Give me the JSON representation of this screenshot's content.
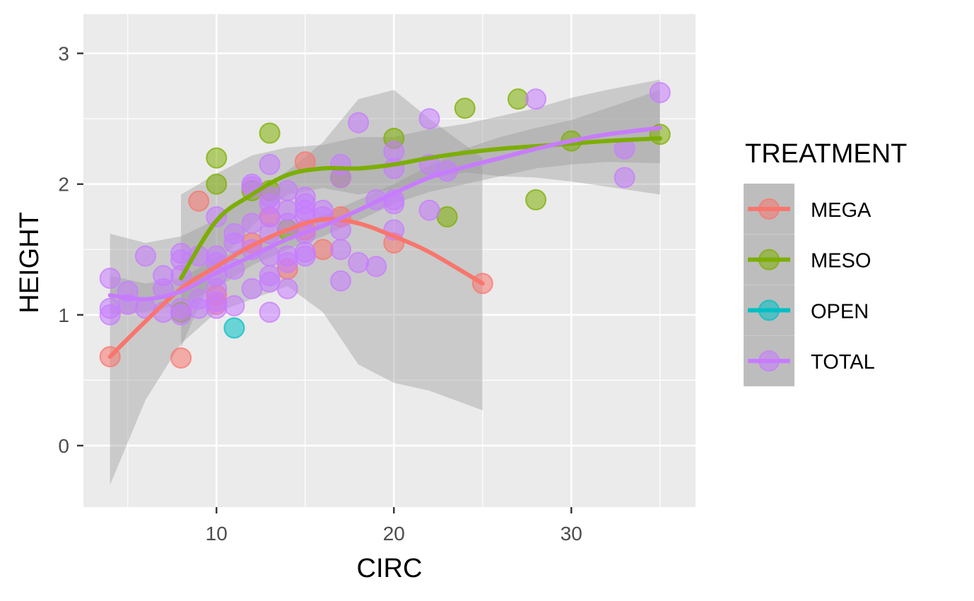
{
  "chart_data": {
    "type": "scatter",
    "xlabel": "CIRC",
    "ylabel": "HEIGHT",
    "xlim": [
      2.5,
      37
    ],
    "ylim": [
      -0.47,
      3.3
    ],
    "x_ticks": [
      10,
      20,
      30
    ],
    "y_ticks": [
      0,
      1,
      2,
      3
    ],
    "grid": true,
    "legend": {
      "title": "TREATMENT",
      "placement": "right"
    },
    "series": [
      {
        "name": "MEGA",
        "color": "#F8766D",
        "points": [
          [
            4,
            0.68
          ],
          [
            8,
            0.67
          ],
          [
            9,
            1.87
          ],
          [
            10,
            1.08
          ],
          [
            10,
            1.15
          ],
          [
            12,
            1.55
          ],
          [
            13,
            1.75
          ],
          [
            14,
            1.35
          ],
          [
            15,
            2.17
          ],
          [
            15,
            1.65
          ],
          [
            16,
            1.5
          ],
          [
            17,
            1.75
          ],
          [
            20,
            1.55
          ],
          [
            25,
            1.24
          ]
        ],
        "smooth": [
          [
            4,
            0.68
          ],
          [
            6,
            0.95
          ],
          [
            8,
            1.2
          ],
          [
            10,
            1.37
          ],
          [
            12,
            1.53
          ],
          [
            14,
            1.65
          ],
          [
            16,
            1.73
          ],
          [
            18,
            1.7
          ],
          [
            20,
            1.6
          ],
          [
            22,
            1.48
          ],
          [
            25,
            1.24
          ]
        ],
        "band": [
          [
            4,
            -0.3,
            1.62
          ],
          [
            6,
            0.35,
            1.55
          ],
          [
            8,
            0.78,
            1.6
          ],
          [
            10,
            1.02,
            1.73
          ],
          [
            12,
            1.12,
            1.92
          ],
          [
            14,
            1.22,
            2.1
          ],
          [
            16,
            1.02,
            2.32
          ],
          [
            18,
            0.62,
            2.65
          ],
          [
            20,
            0.48,
            2.72
          ],
          [
            22,
            0.42,
            2.5
          ],
          [
            25,
            0.27,
            2.2
          ]
        ]
      },
      {
        "name": "MESO",
        "color": "#7CAE00",
        "points": [
          [
            8,
            1.02
          ],
          [
            10,
            2.2
          ],
          [
            10,
            2.0
          ],
          [
            12,
            1.95
          ],
          [
            13,
            2.39
          ],
          [
            13,
            1.95
          ],
          [
            14,
            1.65
          ],
          [
            17,
            2.05
          ],
          [
            20,
            2.35
          ],
          [
            23,
            1.75
          ],
          [
            24,
            2.58
          ],
          [
            27,
            2.65
          ],
          [
            28,
            1.88
          ],
          [
            30,
            2.33
          ],
          [
            35,
            2.38
          ]
        ],
        "smooth": [
          [
            8,
            1.28
          ],
          [
            10,
            1.72
          ],
          [
            12,
            1.92
          ],
          [
            14,
            2.07
          ],
          [
            16,
            2.12
          ],
          [
            18,
            2.12
          ],
          [
            20,
            2.15
          ],
          [
            22,
            2.2
          ],
          [
            24,
            2.24
          ],
          [
            26,
            2.27
          ],
          [
            28,
            2.29
          ],
          [
            30,
            2.31
          ],
          [
            32,
            2.33
          ],
          [
            35,
            2.35
          ]
        ],
        "band": [
          [
            8,
            0.75,
            1.92
          ],
          [
            10,
            1.38,
            2.08
          ],
          [
            12,
            1.68,
            2.22
          ],
          [
            14,
            1.92,
            2.28
          ],
          [
            16,
            1.97,
            2.3
          ],
          [
            18,
            1.92,
            2.36
          ],
          [
            20,
            1.96,
            2.36
          ],
          [
            22,
            2.04,
            2.42
          ],
          [
            24,
            2.09,
            2.46
          ],
          [
            26,
            2.06,
            2.52
          ],
          [
            28,
            2.05,
            2.58
          ],
          [
            30,
            2.02,
            2.66
          ],
          [
            32,
            1.98,
            2.72
          ],
          [
            35,
            1.92,
            2.8
          ]
        ]
      },
      {
        "name": "OPEN",
        "color": "#00BFC4",
        "points": [
          [
            11,
            0.9
          ]
        ],
        "smooth": [],
        "band": []
      },
      {
        "name": "TOTAL",
        "color": "#C77CFF",
        "points": [
          [
            4,
            1.28
          ],
          [
            4,
            1.05
          ],
          [
            4,
            1.0
          ],
          [
            5,
            1.18
          ],
          [
            5,
            1.08
          ],
          [
            6,
            1.45
          ],
          [
            6,
            1.05
          ],
          [
            7,
            1.3
          ],
          [
            7,
            1.2
          ],
          [
            7,
            1.02
          ],
          [
            8,
            1.47
          ],
          [
            8,
            1.42
          ],
          [
            8,
            1.3
          ],
          [
            8,
            1.05
          ],
          [
            8,
            1.0
          ],
          [
            9,
            1.45
          ],
          [
            9,
            1.12
          ],
          [
            9,
            1.05
          ],
          [
            10,
            1.75
          ],
          [
            10,
            1.45
          ],
          [
            10,
            1.4
          ],
          [
            10,
            1.3
          ],
          [
            10,
            1.2
          ],
          [
            10,
            1.1
          ],
          [
            10,
            1.05
          ],
          [
            11,
            1.62
          ],
          [
            11,
            1.55
          ],
          [
            11,
            1.35
          ],
          [
            11,
            1.07
          ],
          [
            12,
            2.0
          ],
          [
            12,
            1.98
          ],
          [
            12,
            1.7
          ],
          [
            12,
            1.5
          ],
          [
            12,
            1.2
          ],
          [
            13,
            2.15
          ],
          [
            13,
            1.9
          ],
          [
            13,
            1.85
          ],
          [
            13,
            1.75
          ],
          [
            13,
            1.62
          ],
          [
            13,
            1.45
          ],
          [
            13,
            1.3
          ],
          [
            13,
            1.25
          ],
          [
            13,
            1.02
          ],
          [
            14,
            1.95
          ],
          [
            14,
            1.8
          ],
          [
            14,
            1.7
          ],
          [
            14,
            1.45
          ],
          [
            14,
            1.4
          ],
          [
            14,
            1.2
          ],
          [
            15,
            1.9
          ],
          [
            15,
            1.85
          ],
          [
            15,
            1.8
          ],
          [
            15,
            1.75
          ],
          [
            15,
            1.62
          ],
          [
            15,
            1.48
          ],
          [
            15,
            1.45
          ],
          [
            16,
            1.8
          ],
          [
            16,
            1.75
          ],
          [
            17,
            2.15
          ],
          [
            17,
            2.05
          ],
          [
            17,
            1.65
          ],
          [
            17,
            1.5
          ],
          [
            17,
            1.26
          ],
          [
            18,
            2.47
          ],
          [
            18,
            1.4
          ],
          [
            19,
            1.88
          ],
          [
            19,
            1.37
          ],
          [
            20,
            2.25
          ],
          [
            20,
            2.12
          ],
          [
            20,
            1.88
          ],
          [
            20,
            1.85
          ],
          [
            20,
            1.65
          ],
          [
            22,
            2.5
          ],
          [
            22,
            2.15
          ],
          [
            22,
            1.8
          ],
          [
            23,
            2.1
          ],
          [
            28,
            2.65
          ],
          [
            33,
            2.27
          ],
          [
            33,
            2.05
          ],
          [
            35,
            2.7
          ]
        ],
        "smooth": [
          [
            4,
            1.15
          ],
          [
            6,
            1.12
          ],
          [
            8,
            1.18
          ],
          [
            10,
            1.32
          ],
          [
            12,
            1.45
          ],
          [
            14,
            1.58
          ],
          [
            16,
            1.68
          ],
          [
            18,
            1.8
          ],
          [
            20,
            1.93
          ],
          [
            22,
            2.05
          ],
          [
            24,
            2.13
          ],
          [
            26,
            2.2
          ],
          [
            28,
            2.27
          ],
          [
            30,
            2.33
          ],
          [
            32,
            2.38
          ],
          [
            35,
            2.43
          ]
        ],
        "band": [
          [
            4,
            1.0,
            1.3
          ],
          [
            6,
            1.02,
            1.24
          ],
          [
            8,
            1.08,
            1.28
          ],
          [
            10,
            1.2,
            1.43
          ],
          [
            12,
            1.38,
            1.55
          ],
          [
            14,
            1.5,
            1.66
          ],
          [
            16,
            1.6,
            1.76
          ],
          [
            18,
            1.72,
            1.88
          ],
          [
            20,
            1.85,
            2.0
          ],
          [
            22,
            1.94,
            2.14
          ],
          [
            24,
            2.0,
            2.27
          ],
          [
            26,
            2.06,
            2.36
          ],
          [
            28,
            2.12,
            2.43
          ],
          [
            30,
            2.15,
            2.49
          ],
          [
            32,
            2.17,
            2.58
          ],
          [
            35,
            2.16,
            2.72
          ]
        ]
      }
    ]
  }
}
